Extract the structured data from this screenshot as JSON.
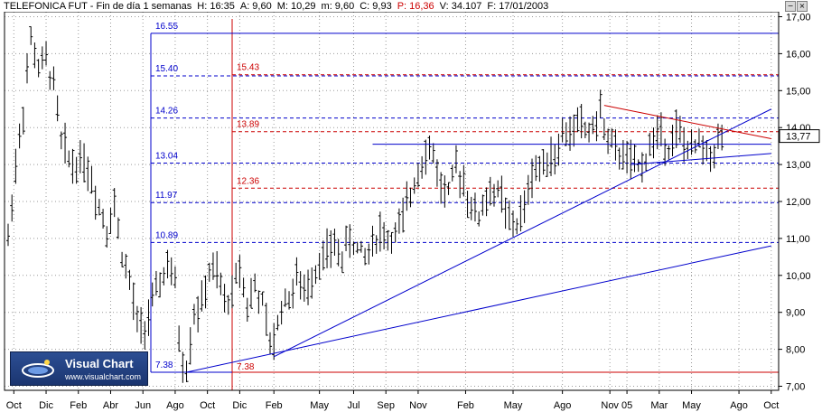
{
  "header": {
    "title": "TELEFONICA FUT - Fin de día 1 semanas",
    "time": "H: 16:35",
    "stats": [
      {
        "text": "A: 9,60",
        "color": "#000000"
      },
      {
        "text": "M: 10,29",
        "color": "#000000"
      },
      {
        "text": "m: 9,60",
        "color": "#000000"
      },
      {
        "text": "C: 9,93",
        "color": "#000000"
      },
      {
        "text": "P: 16,36",
        "color": "#cc0000"
      },
      {
        "text": "V: 34.107",
        "color": "#000000"
      },
      {
        "text": "F: 17/01/2003",
        "color": "#000000"
      }
    ]
  },
  "controls": {
    "minimize_icon": "minus-icon",
    "close_icon": "close-icon",
    "minimize": "−",
    "close": "×"
  },
  "current_price": "13,77",
  "logo": {
    "title": "Visual Chart",
    "url": "www.visualchart.com",
    "icon": "visual-chart-logo-icon"
  },
  "colors": {
    "blue": "#0000cc",
    "red": "#cc0000",
    "bars": "#000000",
    "grid": "#9a9a9a"
  },
  "chart_data": {
    "type": "ohlc",
    "ylim": [
      7.0,
      17.0
    ],
    "y_ticks": [
      "17,00",
      "16,00",
      "15,00",
      "14,00",
      "13,00",
      "12,00",
      "11,00",
      "10,00",
      "9,00",
      "8,00",
      "7,00"
    ],
    "x_labels": [
      {
        "label": "Oct",
        "w": 1.5
      },
      {
        "label": "Dic",
        "w": 10
      },
      {
        "label": "Feb",
        "w": 18.5
      },
      {
        "label": "Abr",
        "w": 27
      },
      {
        "label": "Jun",
        "w": 35.5
      },
      {
        "label": "Ago",
        "w": 44
      },
      {
        "label": "Oct",
        "w": 52.5
      },
      {
        "label": "Dic",
        "w": 61
      },
      {
        "label": "Feb",
        "w": 70
      },
      {
        "label": "May",
        "w": 82
      },
      {
        "label": "Jul",
        "w": 91
      },
      {
        "label": "Sep",
        "w": 99.5
      },
      {
        "label": "Nov",
        "w": 108
      },
      {
        "label": "Feb",
        "w": 120.5
      },
      {
        "label": "May",
        "w": 133
      },
      {
        "label": "Ago",
        "w": 146
      },
      {
        "label": "Nov",
        "w": 158.5
      },
      {
        "label": "05",
        "w": 163
      },
      {
        "label": "Mar",
        "w": 171.5
      },
      {
        "label": "May",
        "w": 180
      },
      {
        "label": "Ago",
        "w": 192.5
      },
      {
        "label": "Oct",
        "w": 201
      }
    ],
    "price_path": [
      [
        0,
        11.0
      ],
      [
        2,
        13.0
      ],
      [
        4,
        14.5
      ],
      [
        6,
        16.4
      ],
      [
        8,
        15.6
      ],
      [
        10,
        15.8
      ],
      [
        12,
        15.2
      ],
      [
        14,
        13.6
      ],
      [
        17,
        13.0
      ],
      [
        20,
        13.2
      ],
      [
        23,
        12.2
      ],
      [
        26,
        11.3
      ],
      [
        28,
        11.9
      ],
      [
        30,
        10.6
      ],
      [
        32,
        9.8
      ],
      [
        34,
        8.7
      ],
      [
        35,
        8.6
      ],
      [
        36,
        8.6
      ],
      [
        38,
        9.2
      ],
      [
        40,
        9.8
      ],
      [
        42,
        10.3
      ],
      [
        44,
        9.7
      ],
      [
        45,
        8.4
      ],
      [
        46,
        7.6
      ],
      [
        47,
        7.5
      ],
      [
        49,
        9.0
      ],
      [
        51,
        9.2
      ],
      [
        53,
        10.1
      ],
      [
        55,
        10.0
      ],
      [
        57,
        9.3
      ],
      [
        59,
        9.5
      ],
      [
        61,
        10.3
      ],
      [
        63,
        9.2
      ],
      [
        65,
        9.7
      ],
      [
        67,
        9.2
      ],
      [
        69,
        8.1
      ],
      [
        70,
        8.2
      ],
      [
        72,
        9.2
      ],
      [
        74,
        9.4
      ],
      [
        76,
        9.9
      ],
      [
        78,
        9.5
      ],
      [
        80,
        10.0
      ],
      [
        82,
        10.4
      ],
      [
        84,
        10.6
      ],
      [
        86,
        10.8
      ],
      [
        88,
        10.5
      ],
      [
        90,
        11.0
      ],
      [
        92,
        10.7
      ],
      [
        94,
        10.5
      ],
      [
        96,
        10.9
      ],
      [
        98,
        11.2
      ],
      [
        100,
        11.0
      ],
      [
        102,
        11.1
      ],
      [
        104,
        11.5
      ],
      [
        106,
        12.2
      ],
      [
        108,
        12.9
      ],
      [
        110,
        13.4
      ],
      [
        112,
        13.3
      ],
      [
        114,
        12.4
      ],
      [
        116,
        12.2
      ],
      [
        118,
        12.9
      ],
      [
        120,
        12.6
      ],
      [
        122,
        11.8
      ],
      [
        124,
        11.6
      ],
      [
        126,
        12.1
      ],
      [
        128,
        12.3
      ],
      [
        130,
        12.1
      ],
      [
        132,
        11.4
      ],
      [
        134,
        11.4
      ],
      [
        136,
        11.8
      ],
      [
        138,
        12.8
      ],
      [
        140,
        12.9
      ],
      [
        142,
        13.3
      ],
      [
        144,
        13.2
      ],
      [
        146,
        13.8
      ],
      [
        148,
        13.8
      ],
      [
        150,
        14.2
      ],
      [
        152,
        13.9
      ],
      [
        154,
        14.0
      ],
      [
        156,
        14.4
      ],
      [
        158,
        13.7
      ],
      [
        160,
        13.3
      ],
      [
        162,
        13.3
      ],
      [
        164,
        13.0
      ],
      [
        166,
        12.9
      ],
      [
        168,
        13.2
      ],
      [
        170,
        13.7
      ],
      [
        172,
        13.9
      ],
      [
        174,
        13.5
      ],
      [
        176,
        13.9
      ],
      [
        178,
        13.6
      ],
      [
        180,
        13.3
      ],
      [
        182,
        13.6
      ],
      [
        184,
        13.3
      ],
      [
        186,
        13.4
      ],
      [
        188,
        13.8
      ]
    ],
    "fib_levels": [
      {
        "value": 16.55,
        "label": "16.55",
        "color": "#0000cc",
        "dashed": false
      },
      {
        "value": 15.43,
        "label": "15.43",
        "color": "#cc0000",
        "dashed": true
      },
      {
        "value": 15.4,
        "label": "15.40",
        "color": "#0000cc",
        "dashed": true
      },
      {
        "value": 14.26,
        "label": "14.26",
        "color": "#0000cc",
        "dashed": true
      },
      {
        "value": 13.89,
        "label": "13.89",
        "color": "#cc0000",
        "dashed": true
      },
      {
        "value": 13.04,
        "label": "13.04",
        "color": "#0000cc",
        "dashed": true
      },
      {
        "value": 12.36,
        "label": "12.36",
        "color": "#cc0000",
        "dashed": true
      },
      {
        "value": 11.97,
        "label": "11.97",
        "color": "#0000cc",
        "dashed": true
      },
      {
        "value": 10.89,
        "label": "10.89",
        "color": "#0000cc",
        "dashed": true
      },
      {
        "value": 7.38,
        "label": "7.38",
        "color": "#0000cc",
        "dashed": false
      },
      {
        "value": 7.38,
        "label": "7.38",
        "color": "#cc0000",
        "dashed": false
      }
    ],
    "trendlines": [
      {
        "from": [
          47,
          7.38
        ],
        "to": [
          201,
          10.8
        ],
        "color": "#0000cc"
      },
      {
        "from": [
          70,
          7.8
        ],
        "to": [
          201,
          14.5
        ],
        "color": "#0000cc"
      },
      {
        "from": [
          164,
          13.0
        ],
        "to": [
          201,
          13.3
        ],
        "color": "#0000cc"
      },
      {
        "from": [
          96,
          13.55
        ],
        "to": [
          201,
          13.55
        ],
        "color": "#0000cc"
      },
      {
        "from": [
          157,
          14.6
        ],
        "to": [
          201,
          13.7
        ],
        "color": "#cc0000"
      }
    ]
  }
}
